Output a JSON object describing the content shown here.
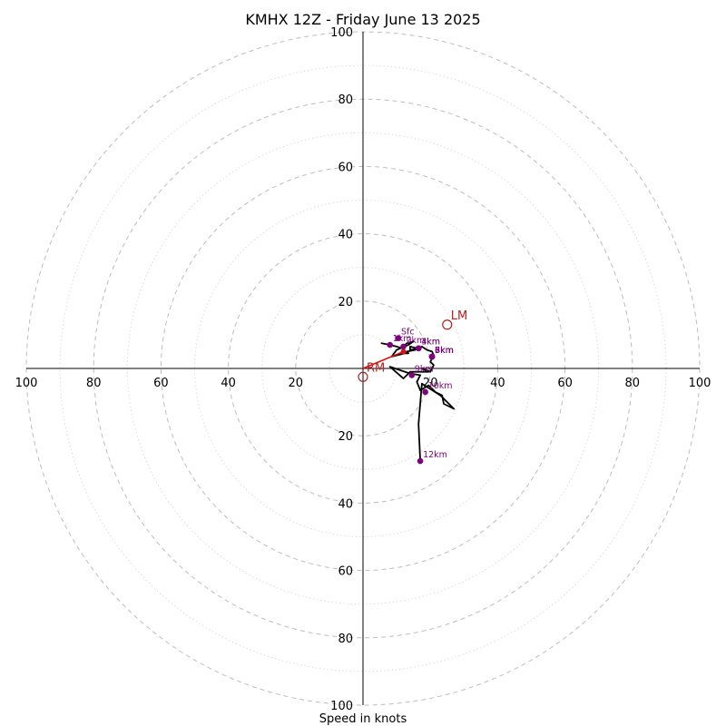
{
  "chart_data": {
    "type": "scatter",
    "title": "KMHX 12Z - Friday June 13 2025",
    "xlabel": "Speed in knots",
    "xlim": [
      -100,
      100
    ],
    "ylim": [
      -100,
      100
    ],
    "tick_values": [
      20,
      40,
      60,
      80,
      100
    ],
    "tick_labels": {
      "x_negative": [
        "20",
        "40",
        "60",
        "80",
        "100"
      ],
      "x_positive": [
        "20",
        "40",
        "60",
        "80",
        "100"
      ],
      "y_positive": [
        "20",
        "40",
        "60",
        "80",
        "100"
      ],
      "y_negative": [
        "20",
        "40",
        "60",
        "80",
        "100"
      ]
    },
    "rings": {
      "major_every": 20,
      "minor_every": 10,
      "max": 100
    },
    "hodograph": {
      "u": [
        8,
        5.5,
        8,
        10,
        11.5,
        13,
        15,
        13.5,
        10,
        8.5,
        12.5,
        13.5,
        13,
        15.5,
        16,
        14,
        14,
        17,
        17.5,
        19,
        20.5,
        21,
        20.5,
        20,
        21,
        20,
        17.5,
        19.5,
        14,
        12,
        8,
        11,
        14,
        17,
        16,
        17,
        19.5,
        21.5,
        23.5,
        24,
        27,
        23,
        17.5,
        16.5,
        17
      ],
      "v": [
        7,
        7.5,
        7,
        6.5,
        6,
        7.5,
        8,
        7,
        5.5,
        3.5,
        4.5,
        4.5,
        5,
        5.5,
        6,
        6.5,
        5.5,
        6,
        6.5,
        5.5,
        5,
        4,
        3,
        2,
        1,
        -1,
        0,
        -1,
        -1,
        -3,
        0.5,
        -0.5,
        -1.5,
        -2,
        -4,
        -6.5,
        -5,
        -7,
        -8,
        -10.5,
        -12,
        -8,
        -4.5,
        -16.5,
        -27.5
      ]
    },
    "height_markers": [
      {
        "label": "Sfc",
        "u": 10.5,
        "v": 9
      },
      {
        "label": "1km",
        "u": 8,
        "v": 7
      },
      {
        "label": "2km",
        "u": 12,
        "v": 6.5
      },
      {
        "label": "3km",
        "u": 16.5,
        "v": 6
      },
      {
        "label": "4km",
        "u": 16.5,
        "v": 6
      },
      {
        "label": "5km",
        "u": 20.5,
        "v": 3.5
      },
      {
        "label": "6km",
        "u": 20.5,
        "v": 3.5
      },
      {
        "label": "7km",
        "u": 20.5,
        "v": 3.5
      },
      {
        "label": "8km",
        "u": 20.5,
        "v": 3.5
      },
      {
        "label": "9km",
        "u": 14.5,
        "v": -2
      },
      {
        "label": "10km",
        "u": 18.5,
        "v": -7
      },
      {
        "label": "12km",
        "u": 17,
        "v": -27.5
      }
    ],
    "storm_motion": [
      {
        "label": "LM",
        "u": 25,
        "v": 13
      },
      {
        "label": "RM",
        "u": 0,
        "v": -2.5
      }
    ],
    "shear_vector": {
      "from_u": 0,
      "from_v": 0,
      "to_u": 12,
      "to_v": 5
    }
  },
  "colors": {
    "hodograph": "#000000",
    "height_marker": "#800080",
    "storm_motion": "#b22222",
    "shear_vector": "#dd1111"
  }
}
